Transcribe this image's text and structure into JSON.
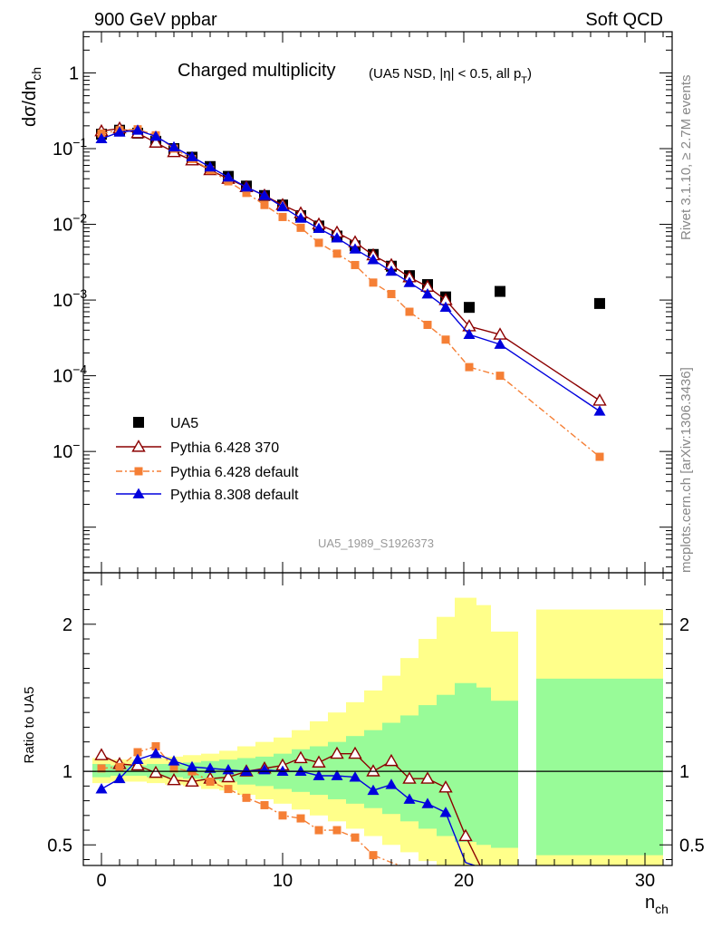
{
  "header": {
    "left": "900 GeV ppbar",
    "right": "Soft QCD"
  },
  "side_text": {
    "upper": "Rivet 3.1.10, ≥ 2.7M events",
    "lower": "mcplots.cern.ch [arXiv:1306.3436]"
  },
  "watermark": "UA5_1989_S1926373",
  "chart_data": [
    {
      "type": "line",
      "title": "Charged multiplicity",
      "subtitle": "(UA5 NSD, |η| < 0.5, all p",
      "subtitle_sub": "T",
      "subtitle_end": ")",
      "ylabel": "dσ/dn",
      "ylabel_sub": "ch",
      "yscale": "log",
      "ylim": [
        2.5e-07,
        3.5
      ],
      "xlim": [
        -1,
        31.5
      ],
      "ytick_labels": [
        {
          "v": 1,
          "base": "1",
          "exp": ""
        },
        {
          "v": 0.1,
          "base": "10",
          "exp": "−1"
        },
        {
          "v": 0.01,
          "base": "10",
          "exp": "−2"
        },
        {
          "v": 0.001,
          "base": "10",
          "exp": "−3"
        },
        {
          "v": 0.0001,
          "base": "10",
          "exp": "−4"
        },
        {
          "v": 1e-05,
          "base": "10",
          "exp": "−"
        }
      ],
      "legend_position": "bottom-left",
      "series": [
        {
          "name": "UA5",
          "color": "#000000",
          "marker": "square",
          "line": "none",
          "x": [
            0,
            1,
            2,
            3,
            4,
            5,
            6,
            7,
            8,
            9,
            10,
            11,
            12,
            13,
            14,
            15,
            16,
            17,
            18,
            19,
            20.3,
            22,
            27.5
          ],
          "y": [
            0.155,
            0.175,
            0.16,
            0.125,
            0.1,
            0.077,
            0.058,
            0.043,
            0.032,
            0.024,
            0.018,
            0.013,
            0.0095,
            0.007,
            0.0052,
            0.004,
            0.0028,
            0.0021,
            0.0016,
            0.0011,
            0.0008,
            0.0013,
            0.0009
          ]
        },
        {
          "name": "Pythia 6.428 370",
          "color": "#8b0000",
          "marker": "triangle-open",
          "line": "solid",
          "x": [
            0,
            1,
            2,
            3,
            4,
            5,
            6,
            7,
            8,
            9,
            10,
            11,
            12,
            13,
            14,
            15,
            16,
            17,
            18,
            19,
            20.3,
            22,
            27.5
          ],
          "y": [
            0.17,
            0.185,
            0.16,
            0.12,
            0.09,
            0.07,
            0.052,
            0.04,
            0.031,
            0.024,
            0.018,
            0.014,
            0.01,
            0.0078,
            0.0058,
            0.0039,
            0.0029,
            0.002,
            0.0015,
            0.001,
            0.00045,
            0.00035,
            4.7e-05
          ]
        },
        {
          "name": "Pythia 6.428 default",
          "color": "#f57f35",
          "marker": "square-small",
          "line": "dashdot",
          "x": [
            0,
            1,
            2,
            3,
            4,
            5,
            6,
            7,
            8,
            9,
            10,
            11,
            12,
            13,
            14,
            15,
            16,
            17,
            18,
            19,
            20.3,
            22,
            27.5
          ],
          "y": [
            0.158,
            0.175,
            0.18,
            0.15,
            0.1,
            0.073,
            0.052,
            0.037,
            0.026,
            0.018,
            0.0125,
            0.009,
            0.0057,
            0.0041,
            0.0029,
            0.0017,
            0.0012,
            0.0007,
            0.00047,
            0.0003,
            0.00013,
            0.0001,
            8.5e-06
          ]
        },
        {
          "name": "Pythia 8.308 default",
          "color": "#0000dd",
          "marker": "triangle",
          "line": "solid",
          "x": [
            0,
            1,
            2,
            3,
            4,
            5,
            6,
            7,
            8,
            9,
            10,
            11,
            12,
            13,
            14,
            15,
            16,
            17,
            18,
            19,
            20.3,
            22,
            27.5
          ],
          "y": [
            0.135,
            0.165,
            0.175,
            0.145,
            0.105,
            0.078,
            0.057,
            0.042,
            0.031,
            0.024,
            0.017,
            0.012,
            0.0088,
            0.0066,
            0.0047,
            0.0034,
            0.0024,
            0.0017,
            0.0012,
            0.0008,
            0.00035,
            0.00026,
            3.4e-05
          ]
        }
      ]
    },
    {
      "type": "line",
      "ylabel": "Ratio to UA5",
      "xlabel": "n",
      "xlabel_sub": "ch",
      "ylim": [
        0.36,
        2.35
      ],
      "xlim": [
        -1,
        31.5
      ],
      "xticks": [
        0,
        10,
        20,
        30
      ],
      "yticks": [
        0.5,
        1,
        2
      ],
      "reference_line": 1,
      "bands": [
        {
          "x0": -0.5,
          "x1": 0.5,
          "y1lo": 0.96,
          "y1hi": 1.05,
          "y2lo": 0.92,
          "y2hi": 1.09
        },
        {
          "x0": 0.5,
          "x1": 1.5,
          "y1lo": 0.97,
          "y1hi": 1.04,
          "y2lo": 0.93,
          "y2hi": 1.08
        },
        {
          "x0": 1.5,
          "x1": 2.5,
          "y1lo": 0.97,
          "y1hi": 1.04,
          "y2lo": 0.93,
          "y2hi": 1.08
        },
        {
          "x0": 2.5,
          "x1": 3.5,
          "y1lo": 0.96,
          "y1hi": 1.05,
          "y2lo": 0.92,
          "y2hi": 1.09
        },
        {
          "x0": 3.5,
          "x1": 4.5,
          "y1lo": 0.96,
          "y1hi": 1.05,
          "y2lo": 0.91,
          "y2hi": 1.1
        },
        {
          "x0": 4.5,
          "x1": 5.5,
          "y1lo": 0.95,
          "y1hi": 1.06,
          "y2lo": 0.9,
          "y2hi": 1.11
        },
        {
          "x0": 5.5,
          "x1": 6.5,
          "y1lo": 0.94,
          "y1hi": 1.07,
          "y2lo": 0.88,
          "y2hi": 1.12
        },
        {
          "x0": 6.5,
          "x1": 7.5,
          "y1lo": 0.93,
          "y1hi": 1.08,
          "y2lo": 0.87,
          "y2hi": 1.14
        },
        {
          "x0": 7.5,
          "x1": 8.5,
          "y1lo": 0.91,
          "y1hi": 1.09,
          "y2lo": 0.84,
          "y2hi": 1.17
        },
        {
          "x0": 8.5,
          "x1": 9.5,
          "y1lo": 0.9,
          "y1hi": 1.1,
          "y2lo": 0.81,
          "y2hi": 1.2
        },
        {
          "x0": 9.5,
          "x1": 10.5,
          "y1lo": 0.88,
          "y1hi": 1.12,
          "y2lo": 0.78,
          "y2hi": 1.23
        },
        {
          "x0": 10.5,
          "x1": 11.5,
          "y1lo": 0.86,
          "y1hi": 1.15,
          "y2lo": 0.74,
          "y2hi": 1.28
        },
        {
          "x0": 11.5,
          "x1": 12.5,
          "y1lo": 0.84,
          "y1hi": 1.17,
          "y2lo": 0.7,
          "y2hi": 1.34
        },
        {
          "x0": 12.5,
          "x1": 13.5,
          "y1lo": 0.81,
          "y1hi": 1.2,
          "y2lo": 0.66,
          "y2hi": 1.4
        },
        {
          "x0": 13.5,
          "x1": 14.5,
          "y1lo": 0.78,
          "y1hi": 1.24,
          "y2lo": 0.61,
          "y2hi": 1.47
        },
        {
          "x0": 14.5,
          "x1": 15.5,
          "y1lo": 0.75,
          "y1hi": 1.28,
          "y2lo": 0.56,
          "y2hi": 1.55
        },
        {
          "x0": 15.5,
          "x1": 16.5,
          "y1lo": 0.71,
          "y1hi": 1.33,
          "y2lo": 0.5,
          "y2hi": 1.65
        },
        {
          "x0": 16.5,
          "x1": 17.5,
          "y1lo": 0.66,
          "y1hi": 1.38,
          "y2lo": 0.45,
          "y2hi": 1.77
        },
        {
          "x0": 17.5,
          "x1": 18.5,
          "y1lo": 0.61,
          "y1hi": 1.45,
          "y2lo": 0.39,
          "y2hi": 1.9
        },
        {
          "x0": 18.5,
          "x1": 19.5,
          "y1lo": 0.56,
          "y1hi": 1.52,
          "y2lo": 0.3,
          "y2hi": 2.05
        },
        {
          "x0": 19.5,
          "x1": 20.7,
          "y1lo": 0.52,
          "y1hi": 1.6,
          "y2lo": 0.25,
          "y2hi": 2.18
        },
        {
          "x0": 20.7,
          "x1": 21.5,
          "y1lo": 0.5,
          "y1hi": 1.57,
          "y2lo": 0.25,
          "y2hi": 2.13
        },
        {
          "x0": 21.5,
          "x1": 23.0,
          "y1lo": 0.48,
          "y1hi": 1.48,
          "y2lo": 0.25,
          "y2hi": 1.95
        },
        {
          "x0": 24.0,
          "x1": 31.0,
          "y1lo": 0.43,
          "y1hi": 1.63,
          "y2lo": 0.25,
          "y2hi": 2.1
        }
      ],
      "series": [
        {
          "name": "Pythia 6.428 370",
          "color": "#8b0000",
          "marker": "triangle-open",
          "line": "solid",
          "x": [
            0,
            1,
            2,
            3,
            4,
            5,
            6,
            7,
            8,
            9,
            10,
            11,
            12,
            13,
            14,
            15,
            16,
            17,
            18,
            19,
            20.1,
            20.9
          ],
          "y": [
            1.11,
            1.05,
            1.04,
            0.99,
            0.94,
            0.93,
            0.95,
            0.96,
            1.0,
            1.02,
            1.04,
            1.09,
            1.06,
            1.12,
            1.12,
            1.0,
            1.07,
            0.95,
            0.95,
            0.89,
            0.56,
            0.36
          ]
        },
        {
          "name": "Pythia 6.428 default",
          "color": "#f57f35",
          "marker": "square-small",
          "line": "dashdot",
          "x": [
            0,
            1,
            2,
            3,
            4,
            5,
            6,
            7,
            8,
            9,
            10,
            11,
            12,
            13,
            14,
            15,
            16,
            16.5
          ],
          "y": [
            1.02,
            1.03,
            1.13,
            1.17,
            1.02,
            1.0,
            0.93,
            0.88,
            0.82,
            0.77,
            0.7,
            0.68,
            0.6,
            0.6,
            0.55,
            0.43,
            0.38,
            0.36
          ]
        },
        {
          "name": "Pythia 8.308 default",
          "color": "#0000dd",
          "marker": "triangle",
          "line": "solid",
          "x": [
            0,
            1,
            2,
            3,
            4,
            5,
            6,
            7,
            8,
            9,
            10,
            11,
            12,
            13,
            14,
            15,
            16,
            17,
            18,
            19,
            20.1,
            20.6
          ],
          "y": [
            0.88,
            0.95,
            1.08,
            1.12,
            1.07,
            1.03,
            1.02,
            1.01,
            1.0,
            1.01,
            1.0,
            1.0,
            0.97,
            0.97,
            0.96,
            0.87,
            0.91,
            0.81,
            0.78,
            0.72,
            0.38,
            0.36
          ]
        }
      ]
    }
  ]
}
